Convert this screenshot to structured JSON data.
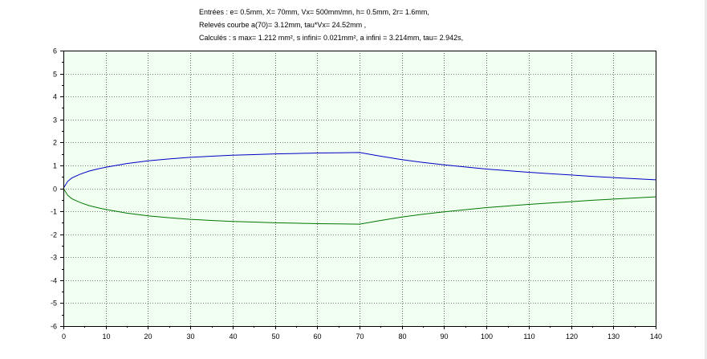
{
  "figure": {
    "title_lines": [
      "Entrées : e= 0.5mm,  X= 70mm,  Vx= 500mm/mn,  h= 0.5mm,  2r= 1.6mm,",
      "Relevés courbe   a(70)= 3.12mm,  tau*Vx= 24.52mm  ,",
      "Calculés : s max= 1.212 mm²,  s infini= 0.021mm²,  a infini = 3.214mm,  tau= 2.942s,"
    ],
    "colors": {
      "plot_background": "#f0fff0",
      "grid": "#000000",
      "upper_curve": "#0000c8",
      "lower_curve": "#007800"
    }
  },
  "chart_data": {
    "type": "line",
    "title": "",
    "xlabel": "",
    "ylabel": "",
    "xlim": [
      0,
      140
    ],
    "ylim": [
      -6,
      6
    ],
    "xticks": [
      0,
      10,
      20,
      30,
      40,
      50,
      60,
      70,
      80,
      90,
      100,
      110,
      120,
      130,
      140
    ],
    "yticks": [
      -6,
      -5,
      -4,
      -3,
      -2,
      -1,
      0,
      1,
      2,
      3,
      4,
      5,
      6
    ],
    "grid": true,
    "legend": "none",
    "x": [
      0,
      1,
      2,
      4,
      6,
      8,
      10,
      15,
      20,
      25,
      30,
      35,
      40,
      45,
      50,
      55,
      60,
      65,
      70,
      75,
      80,
      85,
      90,
      95,
      100,
      105,
      110,
      115,
      120,
      125,
      130,
      135,
      140
    ],
    "series": [
      {
        "color": "#0000c8",
        "values": [
          0,
          0.3,
          0.45,
          0.62,
          0.75,
          0.84,
          0.92,
          1.08,
          1.2,
          1.28,
          1.35,
          1.4,
          1.44,
          1.47,
          1.5,
          1.52,
          1.54,
          1.55,
          1.56,
          1.4,
          1.25,
          1.13,
          1.02,
          0.93,
          0.84,
          0.77,
          0.7,
          0.64,
          0.58,
          0.52,
          0.47,
          0.42,
          0.37
        ]
      },
      {
        "color": "#007800",
        "values": [
          0,
          -0.3,
          -0.45,
          -0.62,
          -0.75,
          -0.84,
          -0.92,
          -1.08,
          -1.2,
          -1.28,
          -1.35,
          -1.4,
          -1.44,
          -1.47,
          -1.5,
          -1.52,
          -1.54,
          -1.55,
          -1.56,
          -1.4,
          -1.25,
          -1.13,
          -1.02,
          -0.93,
          -0.84,
          -0.77,
          -0.7,
          -0.64,
          -0.58,
          -0.52,
          -0.47,
          -0.42,
          -0.37
        ]
      }
    ]
  }
}
